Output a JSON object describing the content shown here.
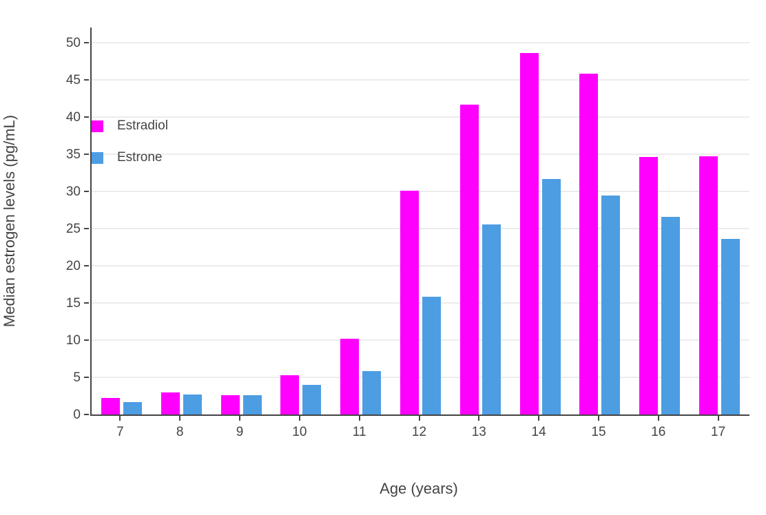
{
  "chart_data": {
    "type": "bar",
    "title": "",
    "xlabel": "Age (years)",
    "ylabel": "Median estrogen levels (pg/mL)",
    "categories": [
      "7",
      "8",
      "9",
      "10",
      "11",
      "12",
      "13",
      "14",
      "15",
      "16",
      "17"
    ],
    "series": [
      {
        "name": "Estradiol",
        "color": "#FF00FF",
        "values": [
          2.2,
          3.0,
          2.6,
          5.3,
          10.2,
          30.1,
          41.6,
          48.6,
          45.8,
          34.6,
          34.7
        ]
      },
      {
        "name": "Estrone",
        "color": "#4D9DE3",
        "values": [
          1.7,
          2.7,
          2.6,
          4.0,
          5.8,
          15.8,
          25.5,
          31.6,
          29.4,
          26.6,
          23.6
        ]
      }
    ],
    "ylim": [
      0,
      52
    ],
    "yticks": [
      0,
      5,
      10,
      15,
      20,
      25,
      30,
      35,
      40,
      45,
      50
    ],
    "grid": true,
    "legend_position": "inside-top-left",
    "colors": {
      "axis": "#444444",
      "grid": "#ececec",
      "text": "#444444",
      "background": "#ffffff"
    }
  }
}
